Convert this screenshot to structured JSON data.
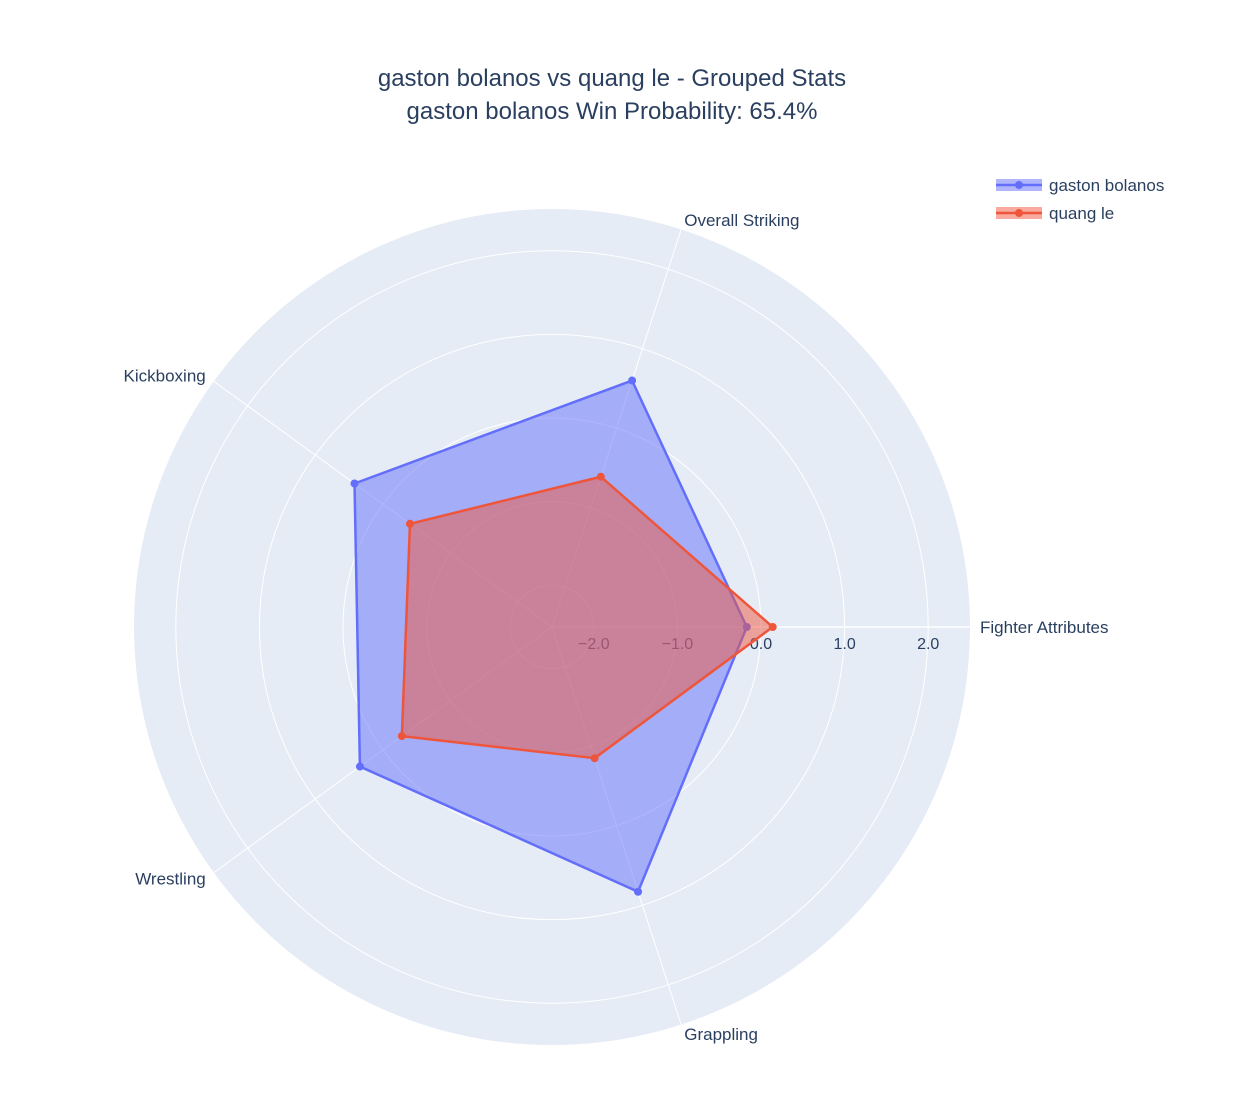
{
  "chart_data": {
    "type": "radar",
    "title_line1": "gaston bolanos vs quang le - Grouped Stats",
    "title_line2": "gaston bolanos Win Probability: 65.4%",
    "categories": [
      "Fighter Attributes",
      "Overall Striking",
      "Kickboxing",
      "Wrestling",
      "Grappling"
    ],
    "radial_range": [
      -2.5,
      2.5
    ],
    "radial_ticks": [
      -2,
      -1,
      0,
      1,
      2
    ],
    "radial_tick_labels": [
      "−2.0",
      "−1.0",
      "0.0",
      "1.0",
      "2.0"
    ],
    "grid": true,
    "legend_position": "top-right",
    "series": [
      {
        "name": "gaston bolanos",
        "color": "#636efa",
        "values": [
          -0.17,
          0.6,
          0.42,
          0.34,
          0.83
        ]
      },
      {
        "name": "quang le",
        "color": "#EF553B",
        "values": [
          0.14,
          -0.61,
          -0.4,
          -0.28,
          -0.85
        ]
      }
    ]
  },
  "colors": {
    "plot_bg": "#e5ecf6",
    "text": "#2a3f5f",
    "grid": "#ffffff"
  }
}
